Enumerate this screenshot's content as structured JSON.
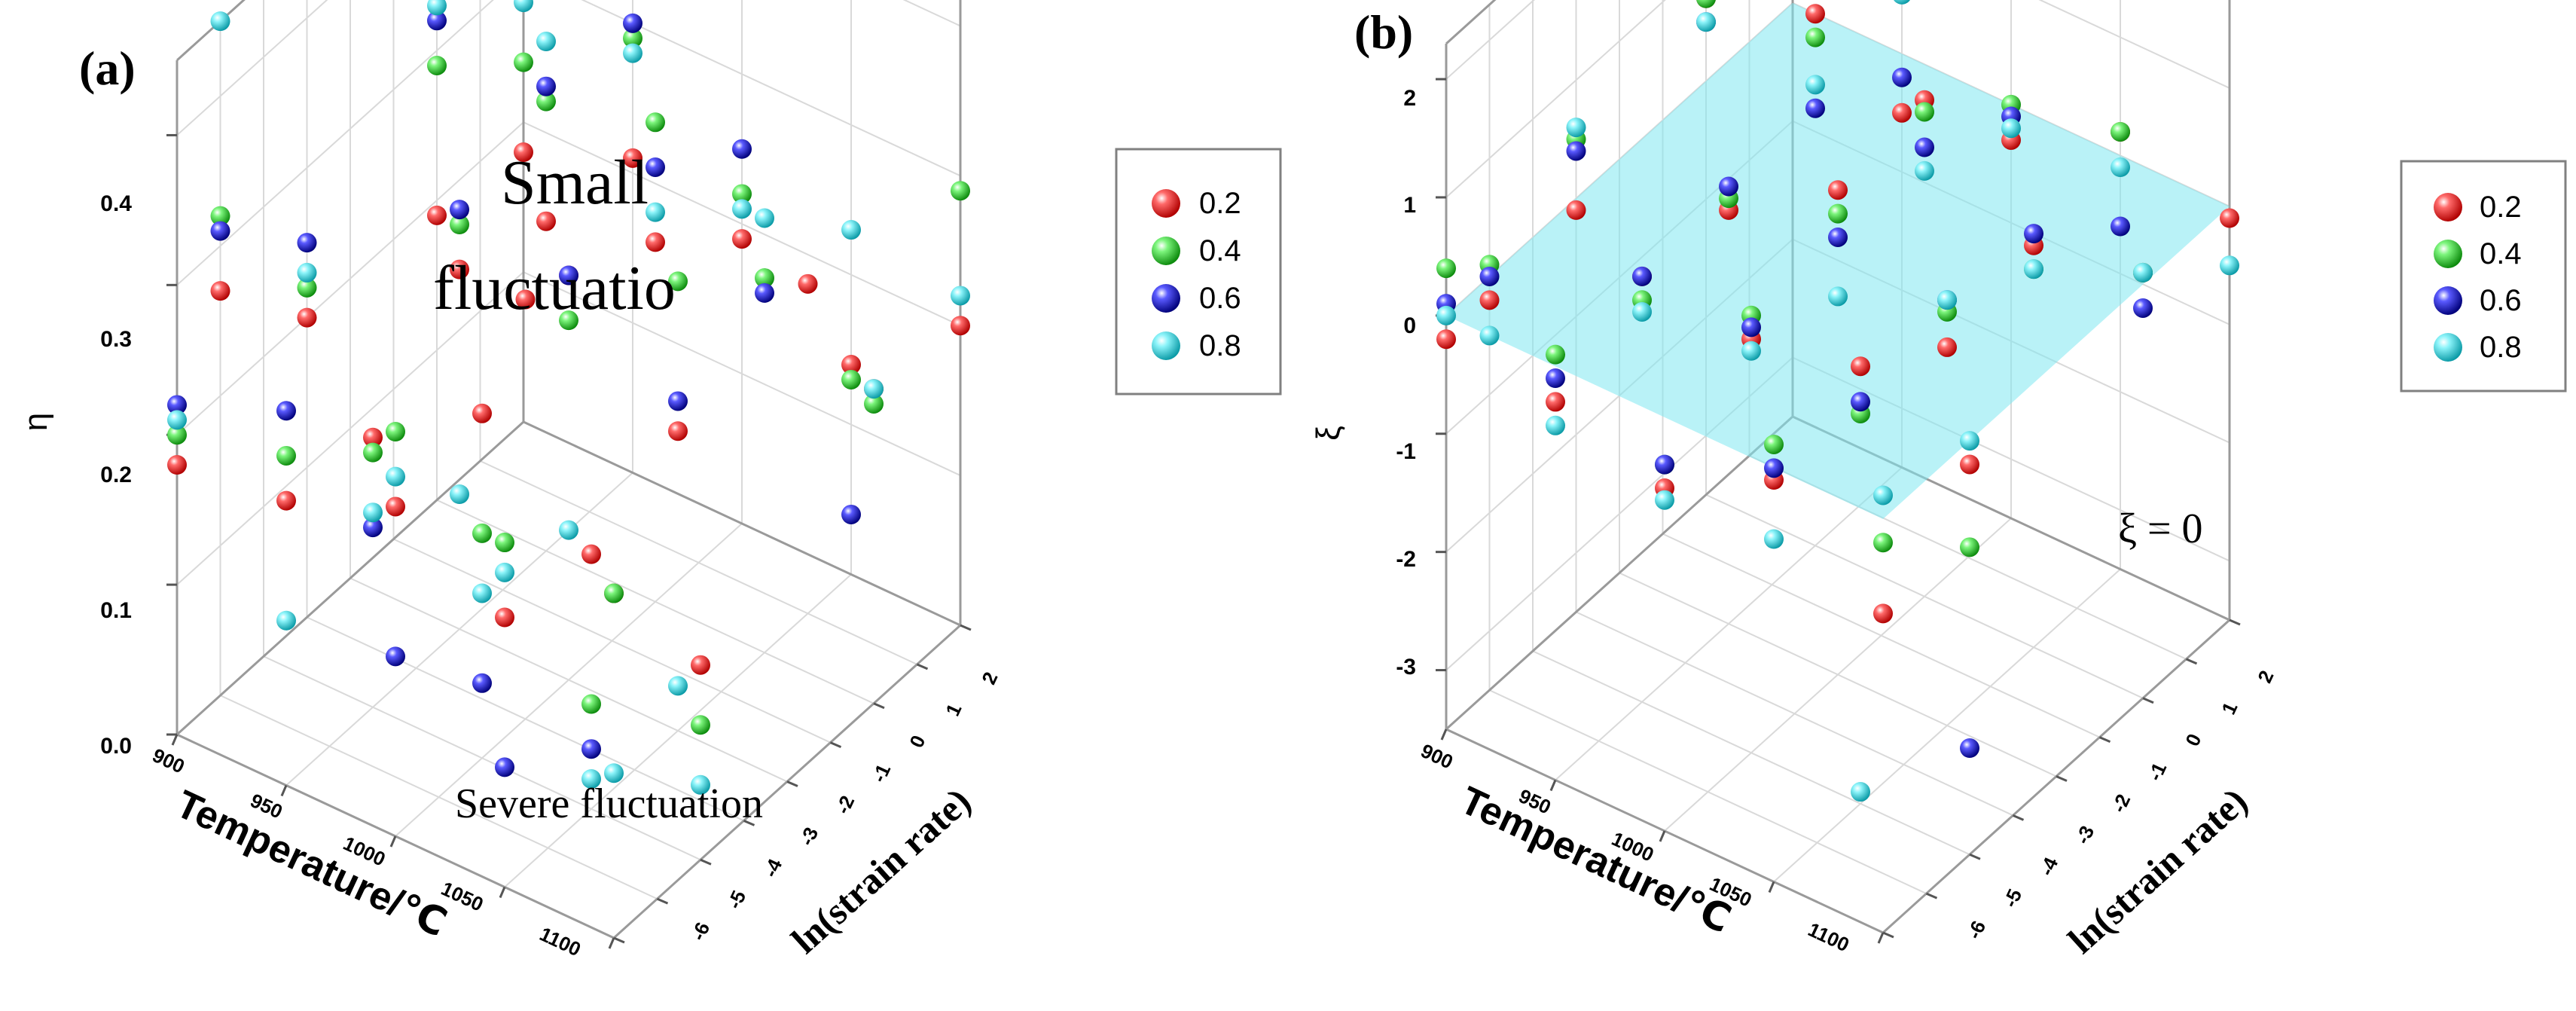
{
  "colors": {
    "series": [
      "#e8141b",
      "#1fd21f",
      "#1414d2",
      "#1bd6e0"
    ],
    "plane": "#7fe8f0",
    "axis": "#000000",
    "grid": "#d9d9d9"
  },
  "chart_data": [
    {
      "type": "scatter",
      "panel_label": "(a)",
      "panel_letter": "a",
      "zlabel": "η",
      "xlabel": "Temperature/℃",
      "ylabel": "ln(strain rate)",
      "z_ticks": [
        "0.0",
        "0.1",
        "0.2",
        "0.3",
        "0.4"
      ],
      "zlim": [
        0,
        0.45
      ],
      "x_ticks": [
        "900",
        "950",
        "1000",
        "1050",
        "1100"
      ],
      "xlim": [
        900,
        1100
      ],
      "y_ticks": [
        "-6",
        "-5",
        "-4",
        "-3",
        "-2",
        "-1",
        "0",
        "1",
        "2"
      ],
      "ylim": [
        -6,
        2
      ],
      "legend": {
        "entries": [
          "0.2",
          "0.4",
          "0.6",
          "0.8"
        ],
        "placement": "right"
      },
      "annotations": [
        {
          "text": "Small",
          "near": "upper-center"
        },
        {
          "text": "fluctuatio",
          "near": "upper-center"
        },
        {
          "text": "Severe fluctuation",
          "near": "bottom-center"
        }
      ],
      "series": [
        {
          "name": "0.2",
          "points": [
            [
              900,
              -6,
              0.18
            ],
            [
              900,
              -3,
              0.2
            ],
            [
              900,
              0,
              0.19
            ],
            [
              900,
              2,
              0.18
            ],
            [
              900,
              -5,
              0.27
            ],
            [
              950,
              -6,
              0.19
            ],
            [
              950,
              -4,
              0.18
            ],
            [
              950,
              -2,
              0.24
            ],
            [
              950,
              0,
              0.22
            ],
            [
              950,
              2,
              0.21
            ],
            [
              1000,
              -6,
              0.22
            ],
            [
              1000,
              -4,
              0.23
            ],
            [
              1000,
              -2,
              0.27
            ],
            [
              1000,
              0,
              0.24
            ],
            [
              1000,
              2,
              0.19
            ],
            [
              1050,
              -6,
              0.18
            ],
            [
              1050,
              -4,
              0.17
            ],
            [
              1050,
              -2,
              0.2
            ],
            [
              1050,
              1,
              0.22
            ],
            [
              1050,
              2,
              0.14
            ],
            [
              1100,
              -6,
              0.23
            ],
            [
              1100,
              -4,
              0.13
            ],
            [
              1100,
              0,
              0.21
            ],
            [
              1100,
              2,
              0.2
            ],
            [
              1000,
              -3,
              0.28
            ]
          ]
        },
        {
          "name": "0.4",
          "points": [
            [
              900,
              -6,
              0.2
            ],
            [
              900,
              -3,
              0.22
            ],
            [
              900,
              0,
              0.29
            ],
            [
              900,
              2,
              0.24
            ],
            [
              900,
              -5,
              0.32
            ],
            [
              950,
              -6,
              0.22
            ],
            [
              950,
              -4,
              0.17
            ],
            [
              950,
              -2,
              0.27
            ],
            [
              950,
              0,
              0.3
            ],
            [
              950,
              2,
              0.29
            ],
            [
              1000,
              -6,
              0.27
            ],
            [
              1000,
              -4,
              0.15
            ],
            [
              1000,
              -2,
              0.24
            ],
            [
              1000,
              0,
              0.32
            ],
            [
              1000,
              2,
              0.22
            ],
            [
              1050,
              -6,
              0.23
            ],
            [
              1050,
              -4,
              0.07
            ],
            [
              1050,
              -2,
              0.3
            ],
            [
              1050,
              0,
              0.25
            ],
            [
              1050,
              2,
              0.13
            ],
            [
              1100,
              -6,
              0.23
            ],
            [
              1100,
              -4,
              0.09
            ],
            [
              1100,
              0,
              0.2
            ],
            [
              1100,
              2,
              0.29
            ]
          ]
        },
        {
          "name": "0.6",
          "points": [
            [
              900,
              -6,
              0.22
            ],
            [
              900,
              -3,
              0.25
            ],
            [
              900,
              0,
              0.32
            ],
            [
              900,
              2,
              0.3
            ],
            [
              900,
              -5,
              0.31
            ],
            [
              950,
              -6,
              0.25
            ],
            [
              950,
              -4,
              0.12
            ],
            [
              950,
              -2,
              0.28
            ],
            [
              950,
              0,
              0.31
            ],
            [
              950,
              2,
              0.3
            ],
            [
              1000,
              -6,
              0.12
            ],
            [
              1000,
              -4,
              0.05
            ],
            [
              1000,
              -2,
              0.27
            ],
            [
              1000,
              0,
              0.29
            ],
            [
              1000,
              2,
              0.25
            ],
            [
              1050,
              -6,
              0.08
            ],
            [
              1050,
              -4,
              0.04
            ],
            [
              1050,
              -2,
              0.22
            ],
            [
              1050,
              0,
              0.24
            ],
            [
              1050,
              2,
              0.04
            ]
          ]
        },
        {
          "name": "0.8",
          "points": [
            [
              900,
              -6,
              0.21
            ],
            [
              900,
              -3,
              0.23
            ],
            [
              900,
              0,
              0.33
            ],
            [
              900,
              2,
              0.28
            ],
            [
              900,
              -5,
              0.45
            ],
            [
              950,
              -6,
              0.11
            ],
            [
              950,
              -4,
              0.13
            ],
            [
              950,
              -2,
              0.09
            ],
            [
              950,
              0,
              0.34
            ],
            [
              950,
              2,
              0.28
            ],
            [
              1000,
              -6,
              0.24
            ],
            [
              1000,
              -4,
              0.11
            ],
            [
              1000,
              -2,
              0.1
            ],
            [
              1000,
              0,
              0.26
            ],
            [
              1000,
              2,
              0.21
            ],
            [
              1050,
              -6,
              0.21
            ],
            [
              1050,
              -4,
              0.02
            ],
            [
              1050,
              -2,
              0.03
            ],
            [
              1050,
              0,
              0.29
            ],
            [
              1050,
              2,
              0.23
            ],
            [
              1100,
              -6,
              0.11
            ],
            [
              1100,
              -4,
              0.05
            ],
            [
              1100,
              0,
              0.21
            ],
            [
              1100,
              2,
              0.22
            ]
          ]
        }
      ]
    },
    {
      "type": "scatter",
      "panel_label": "(b)",
      "panel_letter": "b",
      "zlabel": "ξ",
      "xlabel": "Temperature/℃",
      "ylabel": "ln(strain rate)",
      "z_ticks": [
        "-3",
        "-2",
        "-1",
        "0",
        "1",
        "2"
      ],
      "zlim": [
        -3.5,
        2.3
      ],
      "x_ticks": [
        "900",
        "950",
        "1000",
        "1050",
        "1100"
      ],
      "xlim": [
        900,
        1100
      ],
      "y_ticks": [
        "-6",
        "-5",
        "-4",
        "-3",
        "-2",
        "-1",
        "0",
        "1",
        "2"
      ],
      "ylim": [
        -6,
        2
      ],
      "legend": {
        "entries": [
          "0.2",
          "0.4",
          "0.6",
          "0.8"
        ],
        "placement": "right"
      },
      "plane": {
        "z": 0
      },
      "annotations": [
        {
          "text": "ξ = 0",
          "near": "right"
        }
      ],
      "series": [
        {
          "name": "0.2",
          "points": [
            [
              900,
              -6,
              -0.2
            ],
            [
              900,
              -3,
              -0.1
            ],
            [
              900,
              0,
              0.7
            ],
            [
              900,
              2,
              0.8
            ],
            [
              900,
              -5,
              -0.2
            ],
            [
              950,
              -6,
              -0.3
            ],
            [
              950,
              -4,
              0.1
            ],
            [
              950,
              -2,
              0.0
            ],
            [
              950,
              0,
              1.0
            ],
            [
              950,
              2,
              -0.5
            ],
            [
              1000,
              -6,
              -0.6
            ],
            [
              1000,
              -4,
              0.0
            ],
            [
              1000,
              -2,
              0.6
            ],
            [
              1000,
              0,
              0.7
            ],
            [
              1000,
              2,
              -0.3
            ],
            [
              1050,
              -6,
              -0.1
            ],
            [
              1050,
              -4,
              0.2
            ],
            [
              1050,
              -2,
              -0.3
            ],
            [
              1050,
              0,
              -0.1
            ],
            [
              1050,
              2,
              0.2
            ],
            [
              1100,
              -6,
              -0.8
            ],
            [
              1100,
              -4,
              -0.2
            ],
            [
              1100,
              0,
              0.1
            ],
            [
              1100,
              2,
              -0.1
            ]
          ]
        },
        {
          "name": "0.4",
          "points": [
            [
              900,
              -6,
              0.4
            ],
            [
              900,
              -3,
              0.5
            ],
            [
              900,
              0,
              0.7
            ],
            [
              900,
              2,
              0.9
            ],
            [
              900,
              -5,
              0.1
            ],
            [
              950,
              -6,
              0.1
            ],
            [
              950,
              -4,
              -0.1
            ],
            [
              950,
              -2,
              0.1
            ],
            [
              950,
              0,
              0.8
            ],
            [
              950,
              2,
              0.7
            ],
            [
              1000,
              -6,
              -0.4
            ],
            [
              1000,
              -4,
              0.2
            ],
            [
              1000,
              -2,
              0.4
            ],
            [
              1000,
              0,
              0.6
            ],
            [
              1000,
              2,
              0.0
            ],
            [
              1050,
              -6,
              0.2
            ],
            [
              1050,
              -4,
              -0.2
            ],
            [
              1050,
              -2,
              0.0
            ],
            [
              1050,
              0,
              -0.3
            ],
            [
              1050,
              2,
              0.2
            ],
            [
              1100,
              -6,
              -0.2
            ],
            [
              1100,
              -4,
              -0.9
            ],
            [
              1100,
              0,
              0.1
            ]
          ]
        },
        {
          "name": "0.6",
          "points": [
            [
              900,
              -6,
              0.1
            ],
            [
              900,
              -3,
              0.4
            ],
            [
              900,
              0,
              0.5
            ],
            [
              900,
              2,
              0.3
            ],
            [
              900,
              -5,
              0.0
            ],
            [
              950,
              -6,
              -0.1
            ],
            [
              950,
              -4,
              0.1
            ],
            [
              950,
              -2,
              0.2
            ],
            [
              950,
              0,
              0.2
            ],
            [
              950,
              2,
              -0.2
            ],
            [
              1000,
              -6,
              -0.4
            ],
            [
              1000,
              -4,
              0.1
            ],
            [
              1000,
              -2,
              0.2
            ],
            [
              1000,
              0,
              0.3
            ],
            [
              1000,
              2,
              -0.1
            ],
            [
              1050,
              -6,
              0.0
            ],
            [
              1050,
              -4,
              -0.1
            ],
            [
              1050,
              -2,
              0.1
            ],
            [
              1050,
              0,
              0.0
            ],
            [
              1050,
              2,
              -0.6
            ],
            [
              1100,
              -4,
              -2.6
            ],
            [
              1100,
              0,
              -0.2
            ]
          ]
        },
        {
          "name": "0.8",
          "points": [
            [
              900,
              -6,
              0.0
            ],
            [
              900,
              -3,
              0.6
            ],
            [
              900,
              0,
              0.5
            ],
            [
              900,
              2,
              2.3
            ],
            [
              900,
              -5,
              -0.5
            ],
            [
              950,
              -6,
              -0.5
            ],
            [
              950,
              -4,
              -0.2
            ],
            [
              950,
              -2,
              1.9
            ],
            [
              950,
              0,
              0.4
            ],
            [
              950,
              2,
              0.5
            ],
            [
              1000,
              -6,
              -0.7
            ],
            [
              1000,
              -4,
              -0.1
            ],
            [
              1000,
              -2,
              -0.3
            ],
            [
              1000,
              0,
              0.1
            ],
            [
              1000,
              2,
              -0.2
            ],
            [
              1050,
              -6,
              -0.6
            ],
            [
              1050,
              -4,
              -3.4
            ],
            [
              1050,
              -2,
              0.1
            ],
            [
              1050,
              0,
              -0.3
            ],
            [
              1050,
              2,
              -0.1
            ],
            [
              1100,
              -6,
              0.2
            ],
            [
              1100,
              -4,
              0.0
            ],
            [
              1100,
              0,
              0.1
            ],
            [
              1100,
              2,
              -0.5
            ]
          ]
        }
      ]
    }
  ]
}
